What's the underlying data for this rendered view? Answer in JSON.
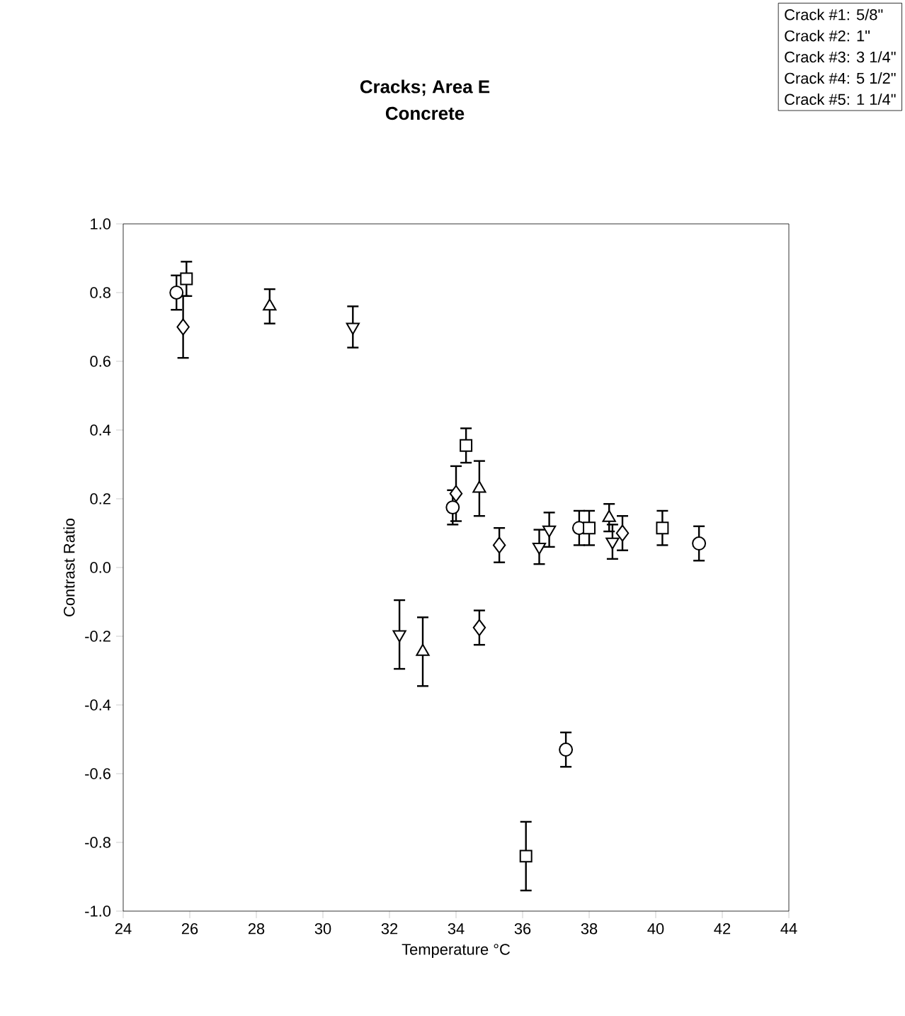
{
  "chart_data": {
    "type": "scatter",
    "title": "Cracks; Area E",
    "subtitle": "Concrete",
    "xlabel": "Temperature °C",
    "ylabel": "Contrast Ratio",
    "annotations": [
      "Crack #1: 5/8\"",
      "Crack #2: 1\"",
      "Crack #3: 3 1/4\"",
      "Crack #4: 5 1/2\"",
      "Crack #5: 1 1/4\""
    ],
    "xlim": [
      24,
      44
    ],
    "xticks": [
      24,
      26,
      28,
      30,
      32,
      34,
      36,
      38,
      40,
      42,
      44
    ],
    "ylim": [
      -1.0,
      1.0
    ],
    "yticks": [
      {
        "value": -1.0,
        "label": "-1.0"
      },
      -0.8,
      -0.6,
      -0.4,
      -0.2,
      {
        "value": 0.0,
        "label": "0.0"
      },
      0.2,
      0.4,
      0.6,
      0.8,
      {
        "value": 1.0,
        "label": "1.0"
      }
    ],
    "series": [
      {
        "color": "#000000",
        "marker": "circle",
        "x": [
          25.6,
          33.9,
          37.3,
          37.7,
          41.3
        ],
        "values": [
          0.8,
          0.175,
          -0.53,
          0.115,
          0.07
        ],
        "errors": [
          0.05,
          0.05,
          0.05,
          0.05,
          0.05
        ]
      },
      {
        "color": "#000000",
        "marker": "square",
        "x": [
          25.9,
          34.3,
          36.1,
          38.0,
          40.2
        ],
        "values": [
          0.84,
          0.355,
          -0.84,
          0.115,
          0.115
        ],
        "errors": [
          0.05,
          0.05,
          0.1,
          0.05,
          0.05
        ]
      },
      {
        "color": "#000000",
        "marker": "triangle",
        "x": [
          28.4,
          33.0,
          34.7,
          38.6
        ],
        "values": [
          0.76,
          -0.245,
          0.23,
          0.145
        ],
        "errors": [
          0.05,
          0.1,
          0.08,
          0.04
        ]
      },
      {
        "color": "#000000",
        "marker": "triangle-down",
        "x": [
          30.9,
          32.3,
          36.5,
          36.8,
          38.7
        ],
        "values": [
          0.7,
          -0.195,
          0.06,
          0.11,
          0.075
        ],
        "errors": [
          0.06,
          0.1,
          0.05,
          0.05,
          0.05
        ]
      },
      {
        "color": "#000000",
        "marker": "diamond",
        "x": [
          25.8,
          34.0,
          34.7,
          35.3,
          39.0
        ],
        "values": [
          0.7,
          0.215,
          -0.175,
          0.065,
          0.1
        ],
        "errors": [
          0.09,
          0.08,
          0.05,
          0.05,
          0.05
        ]
      }
    ]
  }
}
